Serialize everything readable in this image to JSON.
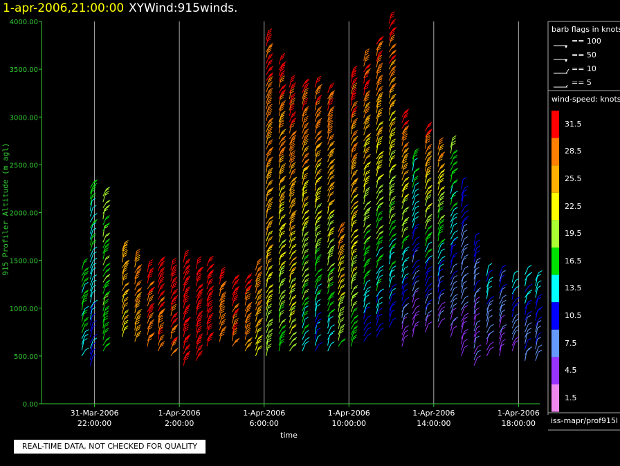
{
  "header": {
    "date": "1-apr-2006,21:00:00",
    "title": "XYWind:915winds."
  },
  "qc_notice": "REAL-TIME DATA, NOT CHECKED FOR QUALITY",
  "footer": "iss-mapr/prof915l",
  "colors": {
    "background": "#000000",
    "axis": "#33cc33",
    "grid": "#aaaaaa",
    "title_date": "#ffff00"
  },
  "legend": {
    "barb_title": "barb flags in knots",
    "barb_items": [
      "== 100",
      "== 50",
      "== 10",
      "== 5"
    ],
    "speed_title": "wind-speed: knots",
    "speed_bins": [
      {
        "label": "31.5",
        "color": "#ff0000"
      },
      {
        "label": "28.5",
        "color": "#ff7f00"
      },
      {
        "label": "25.5",
        "color": "#ffb000"
      },
      {
        "label": "22.5",
        "color": "#ffff00"
      },
      {
        "label": "19.5",
        "color": "#aaff33"
      },
      {
        "label": "16.5",
        "color": "#00e000"
      },
      {
        "label": "13.5",
        "color": "#00ffff"
      },
      {
        "label": "10.5",
        "color": "#0000ff"
      },
      {
        "label": "7.5",
        "color": "#6699ff"
      },
      {
        "label": "4.5",
        "color": "#9933ff"
      },
      {
        "label": "1.5",
        "color": "#ee88ee"
      }
    ]
  },
  "chart_data": {
    "type": "scatter",
    "title": "XYWind:915winds.",
    "xlabel": "time",
    "ylabel": "915 Profiler Altitude (m agl)",
    "ylim": [
      0,
      4000
    ],
    "yticks": [
      "0.00",
      "500.00",
      "1000.00",
      "1500.00",
      "2000.00",
      "2500.00",
      "3000.00",
      "3500.00",
      "4000.00"
    ],
    "xlim_hours": [
      -2.5,
      21.0
    ],
    "xticks": [
      {
        "hour": 0,
        "line1": "31-Mar-2006",
        "line2": "22:00:00"
      },
      {
        "hour": 4,
        "line1": "1-Apr-2006",
        "line2": "2:00:00"
      },
      {
        "hour": 8,
        "line1": "1-Apr-2006",
        "line2": "6:00:00"
      },
      {
        "hour": 12,
        "line1": "1-Apr-2006",
        "line2": "10:00:00"
      },
      {
        "hour": 16,
        "line1": "1-Apr-2006",
        "line2": "14:00:00"
      },
      {
        "hour": 20,
        "line1": "1-Apr-2006",
        "line2": "18:00:00"
      }
    ],
    "grid": true,
    "series_description": "wind barbs colored by speed (knots)",
    "profiles": [
      {
        "hour": -0.6,
        "bottom": 500,
        "top": 1400,
        "spd": [
          13.5,
          16.5
        ]
      },
      {
        "hour": -0.2,
        "bottom": 400,
        "top": 2300,
        "spd": [
          10.5,
          16.5
        ]
      },
      {
        "hour": 0.4,
        "bottom": 550,
        "top": 2200,
        "spd": [
          16.5,
          19.5
        ]
      },
      {
        "hour": 1.3,
        "bottom": 700,
        "top": 1600,
        "spd": [
          22.5,
          25.5
        ]
      },
      {
        "hour": 1.9,
        "bottom": 650,
        "top": 1500,
        "spd": [
          25.5,
          28.5
        ]
      },
      {
        "hour": 2.5,
        "bottom": 600,
        "top": 1400,
        "spd": [
          28.5,
          31.5
        ]
      },
      {
        "hour": 3.0,
        "bottom": 550,
        "top": 1450,
        "spd": [
          28.5,
          31.5
        ]
      },
      {
        "hour": 3.6,
        "bottom": 500,
        "top": 1400,
        "spd": [
          28.5,
          31.5
        ]
      },
      {
        "hour": 4.2,
        "bottom": 400,
        "top": 1500,
        "spd": [
          31.5,
          31.5
        ]
      },
      {
        "hour": 4.8,
        "bottom": 450,
        "top": 1450,
        "spd": [
          31.5,
          31.5
        ]
      },
      {
        "hour": 5.3,
        "bottom": 600,
        "top": 1450,
        "spd": [
          31.5,
          31.5
        ]
      },
      {
        "hour": 5.9,
        "bottom": 650,
        "top": 1350,
        "spd": [
          28.5,
          31.5
        ]
      },
      {
        "hour": 6.5,
        "bottom": 600,
        "top": 1300,
        "spd": [
          28.5,
          31.5
        ]
      },
      {
        "hour": 7.1,
        "bottom": 550,
        "top": 1300,
        "spd": [
          25.5,
          31.5
        ]
      },
      {
        "hour": 7.6,
        "bottom": 500,
        "top": 1400,
        "spd": [
          22.5,
          28.5
        ]
      },
      {
        "hour": 8.1,
        "bottom": 500,
        "top": 3800,
        "spd": [
          19.5,
          31.5
        ]
      },
      {
        "hour": 8.7,
        "bottom": 550,
        "top": 3600,
        "spd": [
          16.5,
          31.5
        ]
      },
      {
        "hour": 9.2,
        "bottom": 550,
        "top": 3350,
        "spd": [
          19.5,
          31.5
        ]
      },
      {
        "hour": 9.8,
        "bottom": 550,
        "top": 3350,
        "spd": [
          13.5,
          31.5
        ]
      },
      {
        "hour": 10.4,
        "bottom": 550,
        "top": 3350,
        "spd": [
          10.5,
          31.5
        ]
      },
      {
        "hour": 11.0,
        "bottom": 550,
        "top": 3300,
        "spd": [
          13.5,
          31.5
        ]
      },
      {
        "hour": 11.5,
        "bottom": 600,
        "top": 1800,
        "spd": [
          16.5,
          28.5
        ]
      },
      {
        "hour": 12.1,
        "bottom": 600,
        "top": 3450,
        "spd": [
          16.5,
          31.5
        ]
      },
      {
        "hour": 12.7,
        "bottom": 650,
        "top": 3600,
        "spd": [
          10.5,
          31.5
        ]
      },
      {
        "hour": 13.3,
        "bottom": 700,
        "top": 3800,
        "spd": [
          10.5,
          31.5
        ]
      },
      {
        "hour": 13.9,
        "bottom": 800,
        "top": 4000,
        "spd": [
          10.5,
          31.5
        ]
      },
      {
        "hour": 14.5,
        "bottom": 600,
        "top": 3000,
        "spd": [
          4.5,
          31.5
        ]
      },
      {
        "hour": 15.0,
        "bottom": 700,
        "top": 2600,
        "spd": [
          4.5,
          16.5
        ]
      },
      {
        "hour": 15.6,
        "bottom": 750,
        "top": 2900,
        "spd": [
          4.5,
          31.5
        ]
      },
      {
        "hour": 16.2,
        "bottom": 800,
        "top": 2700,
        "spd": [
          4.5,
          28.5
        ]
      },
      {
        "hour": 16.8,
        "bottom": 700,
        "top": 2700,
        "spd": [
          4.5,
          19.5
        ]
      },
      {
        "hour": 17.3,
        "bottom": 500,
        "top": 2250,
        "spd": [
          4.5,
          10.5
        ]
      },
      {
        "hour": 17.9,
        "bottom": 400,
        "top": 1700,
        "spd": [
          4.5,
          10.5
        ]
      },
      {
        "hour": 18.5,
        "bottom": 500,
        "top": 1350,
        "spd": [
          4.5,
          13.5
        ]
      },
      {
        "hour": 19.1,
        "bottom": 500,
        "top": 1350,
        "spd": [
          4.5,
          10.5
        ]
      },
      {
        "hour": 19.7,
        "bottom": 550,
        "top": 1300,
        "spd": [
          4.5,
          13.5
        ]
      },
      {
        "hour": 20.3,
        "bottom": 450,
        "top": 1400,
        "spd": [
          7.5,
          13.5
        ]
      },
      {
        "hour": 20.8,
        "bottom": 450,
        "top": 1300,
        "spd": [
          7.5,
          13.5
        ]
      },
      {
        "hour": 21.4,
        "bottom": 500,
        "top": 1350,
        "spd": [
          7.5,
          13.5
        ]
      },
      {
        "hour": 22.0,
        "bottom": 450,
        "top": 1350,
        "spd": [
          7.5,
          13.5
        ]
      },
      {
        "hour": 22.6,
        "bottom": 500,
        "top": 1400,
        "spd": [
          7.5,
          13.5
        ]
      },
      {
        "hour": 23.1,
        "bottom": 550,
        "top": 1450,
        "spd": [
          7.5,
          13.5
        ]
      }
    ]
  }
}
